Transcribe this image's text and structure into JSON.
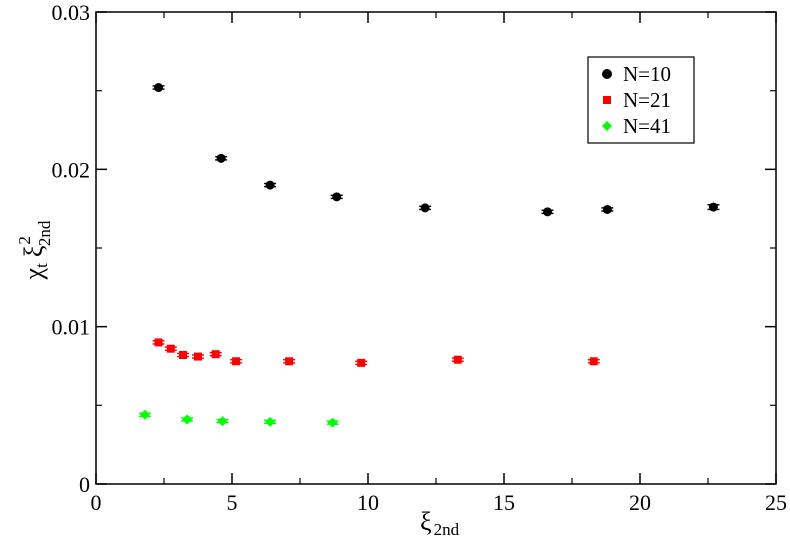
{
  "chart_data": {
    "type": "scatter",
    "xlim": [
      0,
      25
    ],
    "ylim": [
      0,
      0.03
    ],
    "x_ticks": [
      0,
      5,
      10,
      15,
      20,
      25
    ],
    "x_tick_labels": [
      "0",
      "5",
      "10",
      "15",
      "20",
      "25"
    ],
    "y_ticks": [
      0,
      0.01,
      0.02,
      0.03
    ],
    "y_tick_labels": [
      "0",
      "0.01",
      "0.02",
      "0.03"
    ],
    "xlabel": {
      "main": "ξ",
      "sub": "2nd"
    },
    "ylabel": {
      "chi": "χ",
      "chi_sub": "t",
      "xi": "ξ",
      "xi_sup": "2",
      "xi_sub": "2nd"
    },
    "grid": false,
    "legend_position": "top-right",
    "series": [
      {
        "name": "N=10",
        "color": "#000000",
        "marker": "circle",
        "points": [
          {
            "x": 2.3,
            "y": 0.0252,
            "err": 0.0001
          },
          {
            "x": 4.6,
            "y": 0.0207,
            "err": 0.0001
          },
          {
            "x": 6.4,
            "y": 0.019,
            "err": 0.0001
          },
          {
            "x": 8.85,
            "y": 0.01825,
            "err": 0.0001
          },
          {
            "x": 12.1,
            "y": 0.01755,
            "err": 0.0001
          },
          {
            "x": 16.6,
            "y": 0.0173,
            "err": 0.0001
          },
          {
            "x": 18.8,
            "y": 0.01745,
            "err": 0.0001
          },
          {
            "x": 22.7,
            "y": 0.0176,
            "err": 0.00015
          }
        ]
      },
      {
        "name": "N=21",
        "color": "#ff0000",
        "marker": "square",
        "points": [
          {
            "x": 2.3,
            "y": 0.009,
            "err": 0.0001
          },
          {
            "x": 2.75,
            "y": 0.0086,
            "err": 0.0001
          },
          {
            "x": 3.2,
            "y": 0.0082,
            "err": 0.0001
          },
          {
            "x": 3.75,
            "y": 0.0081,
            "err": 0.0001
          },
          {
            "x": 4.4,
            "y": 0.00825,
            "err": 0.0001
          },
          {
            "x": 5.15,
            "y": 0.0078,
            "err": 0.0001
          },
          {
            "x": 7.1,
            "y": 0.0078,
            "err": 0.0001
          },
          {
            "x": 9.75,
            "y": 0.0077,
            "err": 0.0001
          },
          {
            "x": 13.3,
            "y": 0.0079,
            "err": 0.0001
          },
          {
            "x": 18.3,
            "y": 0.0078,
            "err": 0.0001
          }
        ]
      },
      {
        "name": "N=41",
        "color": "#00ff00",
        "marker": "diamond",
        "points": [
          {
            "x": 1.8,
            "y": 0.0044,
            "err": 0.0001
          },
          {
            "x": 3.35,
            "y": 0.0041,
            "err": 0.0001
          },
          {
            "x": 4.65,
            "y": 0.004,
            "err": 0.0001
          },
          {
            "x": 6.4,
            "y": 0.00395,
            "err": 0.0001
          },
          {
            "x": 8.7,
            "y": 0.0039,
            "err": 0.0001
          }
        ]
      }
    ]
  }
}
